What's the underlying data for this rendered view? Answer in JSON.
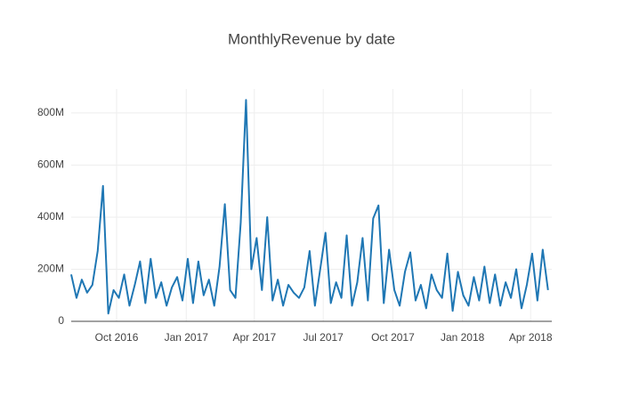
{
  "chart_data": {
    "type": "line",
    "title": "MonthlyRevenue by date",
    "x": [
      "2016-08-02",
      "2016-08-09",
      "2016-08-16",
      "2016-08-23",
      "2016-08-30",
      "2016-09-06",
      "2016-09-13",
      "2016-09-20",
      "2016-09-27",
      "2016-10-04",
      "2016-10-11",
      "2016-10-18",
      "2016-10-25",
      "2016-11-01",
      "2016-11-08",
      "2016-11-15",
      "2016-11-22",
      "2016-11-29",
      "2016-12-06",
      "2016-12-13",
      "2016-12-20",
      "2016-12-27",
      "2017-01-03",
      "2017-01-10",
      "2017-01-17",
      "2017-01-24",
      "2017-01-31",
      "2017-02-07",
      "2017-02-14",
      "2017-02-21",
      "2017-02-28",
      "2017-03-07",
      "2017-03-14",
      "2017-03-21",
      "2017-03-28",
      "2017-04-04",
      "2017-04-11",
      "2017-04-18",
      "2017-04-25",
      "2017-05-02",
      "2017-05-09",
      "2017-05-16",
      "2017-05-23",
      "2017-05-30",
      "2017-06-06",
      "2017-06-13",
      "2017-06-20",
      "2017-06-27",
      "2017-07-04",
      "2017-07-11",
      "2017-07-18",
      "2017-07-25",
      "2017-08-01",
      "2017-08-08",
      "2017-08-15",
      "2017-08-22",
      "2017-08-29",
      "2017-09-05",
      "2017-09-12",
      "2017-09-19",
      "2017-09-26",
      "2017-10-03",
      "2017-10-10",
      "2017-10-17",
      "2017-10-24",
      "2017-10-31",
      "2017-11-07",
      "2017-11-14",
      "2017-11-21",
      "2017-11-28",
      "2017-12-05",
      "2017-12-12",
      "2017-12-19",
      "2017-12-26",
      "2018-01-02",
      "2018-01-09",
      "2018-01-16",
      "2018-01-23",
      "2018-01-30",
      "2018-02-06",
      "2018-02-13",
      "2018-02-20",
      "2018-02-27",
      "2018-03-06",
      "2018-03-13",
      "2018-03-20",
      "2018-03-27",
      "2018-04-03",
      "2018-04-10",
      "2018-04-17",
      "2018-04-24"
    ],
    "series": [
      {
        "name": "MonthlyRevenue",
        "color": "#1f77b4",
        "values": [
          180000000.0,
          90000000.0,
          160000000.0,
          110000000.0,
          140000000.0,
          270000000.0,
          520000000.0,
          30000000.0,
          120000000.0,
          90000000.0,
          180000000.0,
          60000000.0,
          140000000.0,
          230000000.0,
          70000000.0,
          240000000.0,
          90000000.0,
          150000000.0,
          60000000.0,
          130000000.0,
          170000000.0,
          80000000.0,
          240000000.0,
          70000000.0,
          230000000.0,
          100000000.0,
          160000000.0,
          60000000.0,
          210000000.0,
          450000000.0,
          120000000.0,
          90000000.0,
          380000000.0,
          850000000.0,
          200000000.0,
          320000000.0,
          120000000.0,
          400000000.0,
          80000000.0,
          160000000.0,
          60000000.0,
          140000000.0,
          110000000.0,
          90000000.0,
          130000000.0,
          270000000.0,
          60000000.0,
          200000000.0,
          340000000.0,
          70000000.0,
          150000000.0,
          90000000.0,
          330000000.0,
          60000000.0,
          150000000.0,
          320000000.0,
          80000000.0,
          395000000.0,
          445000000.0,
          70000000.0,
          275000000.0,
          120000000.0,
          60000000.0,
          190000000.0,
          265000000.0,
          80000000.0,
          140000000.0,
          50000000.0,
          180000000.0,
          120000000.0,
          90000000.0,
          260000000.0,
          40000000.0,
          190000000.0,
          100000000.0,
          60000000.0,
          170000000.0,
          80000000.0,
          210000000.0,
          70000000.0,
          180000000.0,
          60000000.0,
          150000000.0,
          90000000.0,
          200000000.0,
          50000000.0,
          140000000.0,
          260000000.0,
          80000000.0,
          275000000.0,
          120000000.0
        ]
      }
    ],
    "xlim": [
      "2016-08-02",
      "2018-04-29"
    ],
    "xticks": [
      {
        "value": "2016-10",
        "label": "Oct 2016"
      },
      {
        "value": "2017-01",
        "label": "Jan 2017"
      },
      {
        "value": "2017-04",
        "label": "Apr 2017"
      },
      {
        "value": "2017-07",
        "label": "Jul 2017"
      },
      {
        "value": "2017-10",
        "label": "Oct 2017"
      },
      {
        "value": "2018-01",
        "label": "Jan 2018"
      },
      {
        "value": "2018-04",
        "label": "Apr 2018"
      }
    ],
    "ylim": [
      0,
      892000000.0
    ],
    "yticks": [
      0,
      {
        "value": 200000000.0,
        "label": "200M"
      },
      {
        "value": 400000000.0,
        "label": "400M"
      },
      {
        "value": 600000000.0,
        "label": "600M"
      },
      {
        "value": 800000000.0,
        "label": "800M"
      }
    ],
    "grid": true
  }
}
